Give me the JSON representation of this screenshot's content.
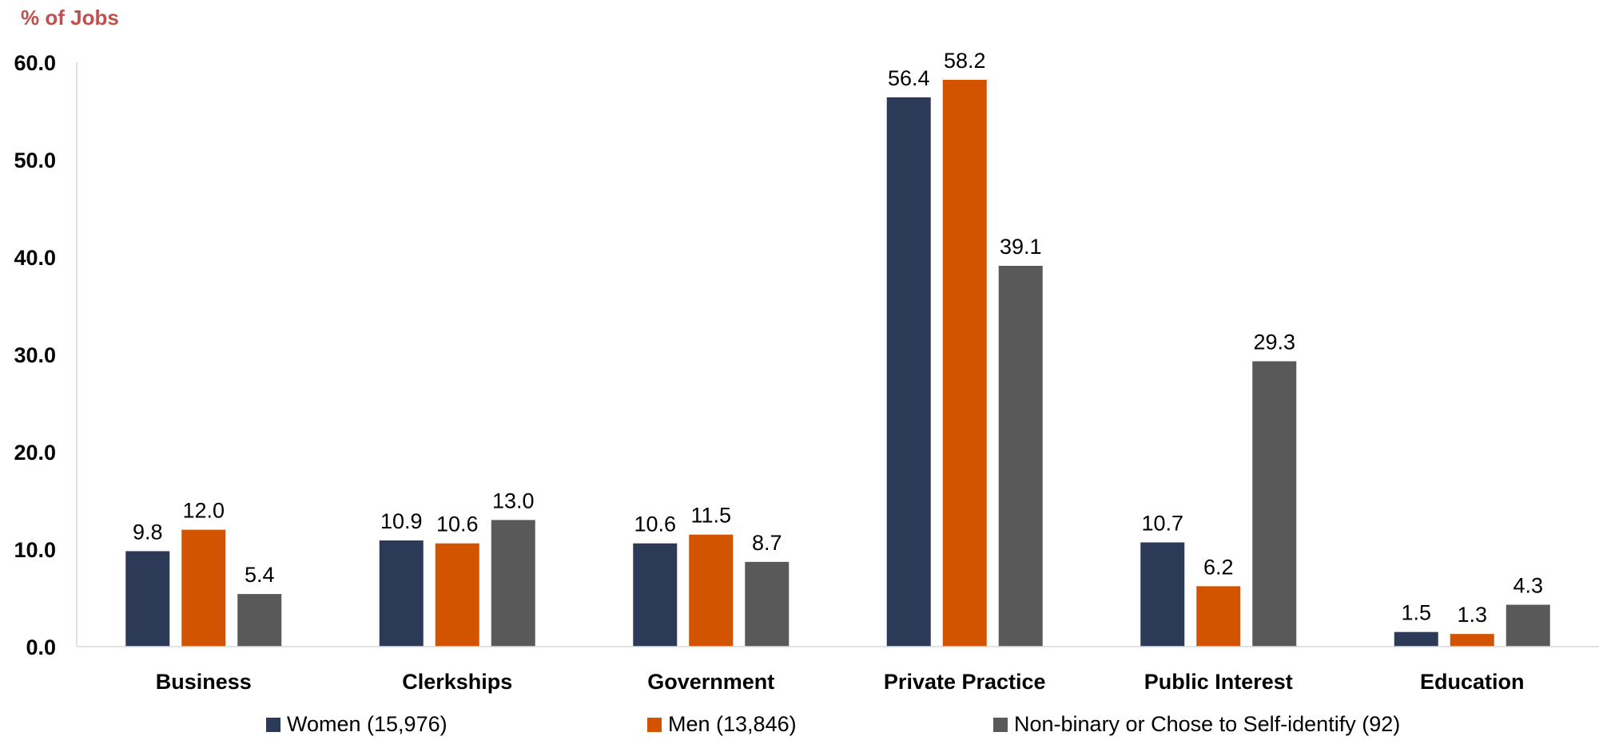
{
  "chart_data": {
    "type": "bar",
    "ylabel": "% of Jobs",
    "ylim": [
      0,
      60
    ],
    "yticks": [
      "0.0",
      "10.0",
      "20.0",
      "30.0",
      "40.0",
      "50.0",
      "60.0"
    ],
    "grid": false,
    "legend_position": "bottom",
    "categories": [
      "Business",
      "Clerkships",
      "Government",
      "Private Practice",
      "Public Interest",
      "Education"
    ],
    "series": [
      {
        "name": "Women (15,976)",
        "color": "#2C3A57",
        "values": [
          9.8,
          10.9,
          10.6,
          56.4,
          10.7,
          1.5
        ],
        "labels": [
          "9.8",
          "10.9",
          "10.6",
          "56.4",
          "10.7",
          "1.5"
        ]
      },
      {
        "name": "Men (13,846)",
        "color": "#D35400",
        "values": [
          12.0,
          10.6,
          11.5,
          58.2,
          6.2,
          1.3
        ],
        "labels": [
          "12.0",
          "10.6",
          "11.5",
          "58.2",
          "6.2",
          "1.3"
        ]
      },
      {
        "name": "Non-binary or Chose to Self-identify (92)",
        "color": "#595959",
        "values": [
          5.4,
          13.0,
          8.7,
          39.1,
          29.3,
          4.3
        ],
        "labels": [
          "5.4",
          "13.0",
          "8.7",
          "39.1",
          "29.3",
          "4.3"
        ]
      }
    ]
  }
}
